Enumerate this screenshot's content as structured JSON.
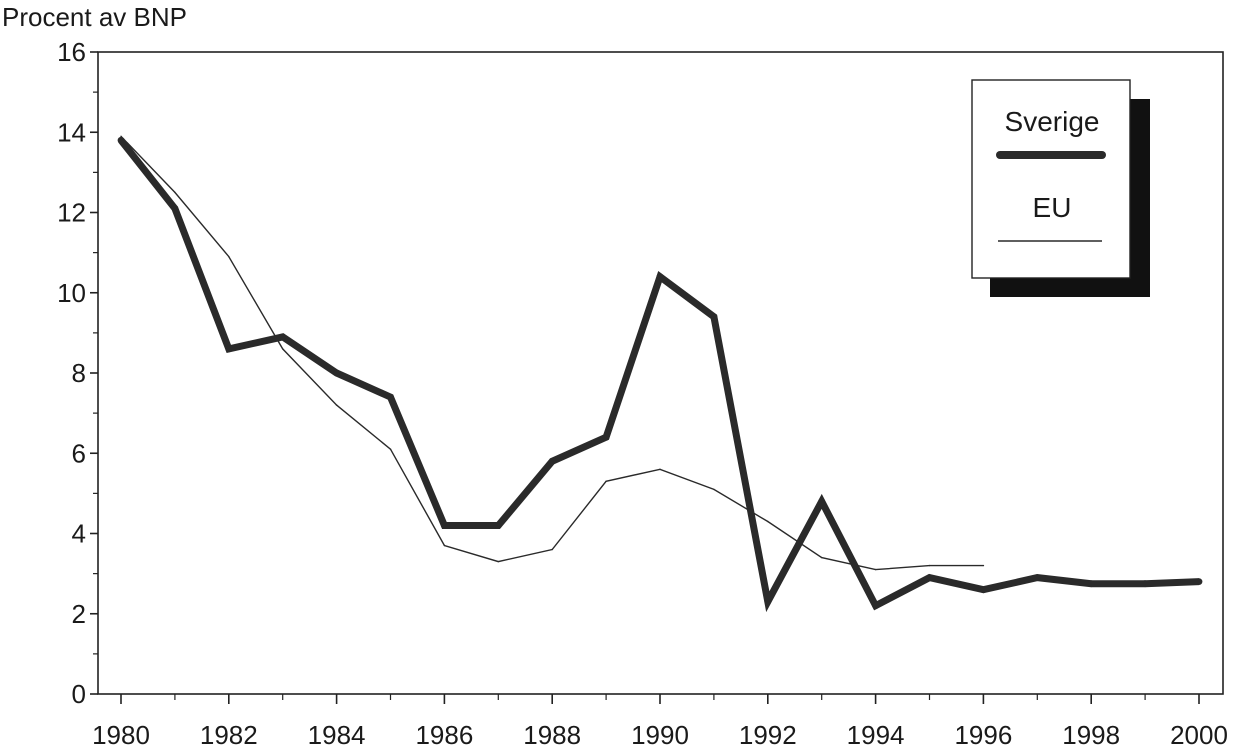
{
  "chart_data": {
    "type": "line",
    "title": "",
    "ylabel": "Procent av BNP",
    "xlabel": "",
    "xlim": [
      1980,
      2000
    ],
    "ylim": [
      0,
      16
    ],
    "x_ticks": [
      "1980",
      "1982",
      "1984",
      "1986",
      "1988",
      "1990",
      "1992",
      "1994",
      "1996",
      "1998",
      "2000"
    ],
    "y_ticks": [
      "0",
      "2",
      "4",
      "6",
      "8",
      "10",
      "12",
      "14",
      "16"
    ],
    "grid": false,
    "legend_position": "top-right",
    "series": [
      {
        "name": "Sverige",
        "style": "thick",
        "color": "#2a2a2a",
        "points": [
          [
            1980,
            13.8
          ],
          [
            1981,
            12.1
          ],
          [
            1982,
            8.6
          ],
          [
            1983,
            8.9
          ],
          [
            1984,
            8.0
          ],
          [
            1985,
            7.4
          ],
          [
            1986,
            4.2
          ],
          [
            1987,
            4.2
          ],
          [
            1988,
            5.8
          ],
          [
            1989,
            6.4
          ],
          [
            1990,
            10.4
          ],
          [
            1991,
            9.4
          ],
          [
            1992,
            2.3
          ],
          [
            1993,
            4.8
          ],
          [
            1994,
            2.2
          ],
          [
            1995,
            2.9
          ],
          [
            1996,
            2.6
          ],
          [
            1997,
            2.9
          ],
          [
            1998,
            2.75
          ],
          [
            1999,
            2.75
          ],
          [
            2000,
            2.8
          ]
        ]
      },
      {
        "name": "EU",
        "style": "thin",
        "color": "#2a2a2a",
        "points": [
          [
            1980,
            13.9
          ],
          [
            1981,
            12.5
          ],
          [
            1982,
            10.9
          ],
          [
            1983,
            8.6
          ],
          [
            1984,
            7.2
          ],
          [
            1985,
            6.1
          ],
          [
            1986,
            3.7
          ],
          [
            1987,
            3.3
          ],
          [
            1988,
            3.6
          ],
          [
            1989,
            5.3
          ],
          [
            1990,
            5.6
          ],
          [
            1991,
            5.1
          ],
          [
            1992,
            4.3
          ],
          [
            1993,
            3.4
          ],
          [
            1994,
            3.1
          ],
          [
            1995,
            3.2
          ],
          [
            1996,
            3.2
          ]
        ]
      }
    ]
  }
}
